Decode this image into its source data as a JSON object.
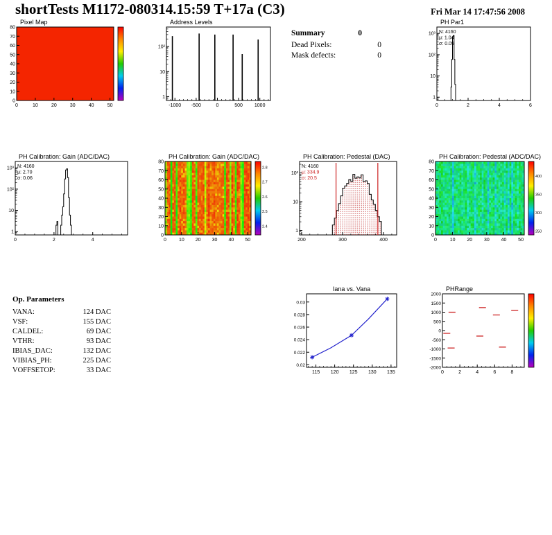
{
  "header": {
    "title": "shortTests M1172-080314.15:59 T+17a (C3)",
    "date": "Fri Mar 14 17:47:56 2008"
  },
  "summary": {
    "title": "Summary",
    "value": "0",
    "rows": [
      {
        "label": "Dead Pixels:",
        "value": "0"
      },
      {
        "label": "Mask defects:",
        "value": "0"
      }
    ]
  },
  "op_parameters": {
    "title": "Op. Parameters",
    "rows": [
      {
        "label": "VANA:",
        "value": "124 DAC"
      },
      {
        "label": "VSF:",
        "value": "155 DAC"
      },
      {
        "label": "CALDEL:",
        "value": "69 DAC"
      },
      {
        "label": "VTHR:",
        "value": "93 DAC"
      },
      {
        "label": "IBIAS_DAC:",
        "value": "132 DAC"
      },
      {
        "label": "VIBIAS_PH:",
        "value": "225 DAC"
      },
      {
        "label": "VOFFSETOP:",
        "value": "33 DAC"
      }
    ]
  },
  "chart_data": [
    {
      "key": "pixel_map",
      "type": "heatmap",
      "title": "Pixel Map",
      "uniform_color": "#f42500",
      "x": {
        "min": 0,
        "max": 52,
        "ticks": [
          0,
          10,
          20,
          30,
          40,
          50
        ]
      },
      "y": {
        "min": 0,
        "max": 80,
        "ticks": [
          0,
          10,
          20,
          30,
          40,
          50,
          60,
          70,
          80
        ]
      },
      "colorbar": {
        "ticks": []
      }
    },
    {
      "key": "address_levels",
      "type": "loghist",
      "title": "Address Levels",
      "x": {
        "min": -1200,
        "max": 1250,
        "ticks": [
          -1000,
          -500,
          0,
          500,
          1000
        ],
        "minor": 100
      },
      "y_log": {
        "min": 0.7,
        "max": 600,
        "decades": [
          [
            1,
            "1"
          ],
          [
            10,
            "10"
          ],
          [
            100,
            "10²"
          ]
        ]
      },
      "spikes": [
        [
          -1060,
          260
        ],
        [
          -430,
          330
        ],
        [
          -60,
          300
        ],
        [
          370,
          300
        ],
        [
          585,
          50
        ],
        [
          960,
          190
        ]
      ]
    },
    {
      "key": "ph_par1",
      "type": "loghist",
      "title": "PH Par1",
      "x": {
        "min": 0,
        "max": 6,
        "ticks": [
          0,
          2,
          4,
          6
        ],
        "minor": 0.5
      },
      "y_log": {
        "min": 0.7,
        "max": 2000,
        "decades": [
          [
            1,
            "1"
          ],
          [
            10,
            "10"
          ],
          [
            100,
            "10²"
          ],
          [
            1000,
            "10³"
          ]
        ]
      },
      "bins": {
        "start": 0.85,
        "width": 0.05,
        "values": [
          0,
          3,
          60,
          700,
          800,
          60,
          4,
          0
        ]
      },
      "stats": [
        [
          "N: 4160",
          "#000000"
        ],
        [
          "μ: 1.04",
          "#000000"
        ],
        [
          "σ: 0.05",
          "#000000"
        ]
      ]
    },
    {
      "key": "gain_hist",
      "type": "loghist",
      "title": "PH Calibration: Gain (ADC/DAC)",
      "x": {
        "min": 0,
        "max": 5.8,
        "ticks": [
          0,
          2,
          4
        ],
        "minor": 0.5
      },
      "y_log": {
        "min": 0.7,
        "max": 2000,
        "decades": [
          [
            1,
            "1"
          ],
          [
            10,
            "10"
          ],
          [
            100,
            "10²"
          ],
          [
            1000,
            "10³"
          ]
        ]
      },
      "bins": {
        "start": 2.05,
        "width": 0.05,
        "values": [
          0,
          2,
          3,
          0,
          0,
          0,
          2,
          6,
          15,
          60,
          300,
          800,
          900,
          350,
          40,
          6,
          2,
          0
        ]
      },
      "stats": [
        [
          "N: 4160",
          "#000000"
        ],
        [
          "μ: 2.70",
          "#000000"
        ],
        [
          "σ: 0.06",
          "#000000"
        ]
      ]
    },
    {
      "key": "gain_map",
      "type": "heatmap",
      "title": "PH Calibration: Gain (ADC/DAC)",
      "noise": "gain",
      "x": {
        "min": 0,
        "max": 52,
        "ticks": [
          0,
          10,
          20,
          30,
          40,
          50
        ]
      },
      "y": {
        "min": 0,
        "max": 80,
        "ticks": [
          0,
          10,
          20,
          30,
          40,
          50,
          60,
          70,
          80
        ]
      },
      "colorbar": {
        "ticks": [
          [
            "2.8",
            0.08
          ],
          [
            "2.7",
            0.28
          ],
          [
            "2.6",
            0.48
          ],
          [
            "2.5",
            0.68
          ],
          [
            "2.4",
            0.88
          ]
        ]
      }
    },
    {
      "key": "pedestal_hist",
      "type": "loghist",
      "title": "PH Calibration: Pedestal (DAC)",
      "x": {
        "min": 195,
        "max": 432,
        "ticks": [
          200,
          300,
          400
        ],
        "minor": 20
      },
      "y_log": {
        "min": 0.7,
        "max": 250,
        "decades": [
          [
            1,
            "1"
          ],
          [
            10,
            "10"
          ],
          [
            100,
            "10²"
          ]
        ]
      },
      "gauss": {
        "mu": 334.9,
        "sigma": 20.5,
        "peak": 85,
        "from": 255,
        "to": 420,
        "bin": 5
      },
      "fill_dots": true,
      "red_lines": [
        284,
        386
      ],
      "stats": [
        [
          "N: 4160",
          "#000000"
        ],
        [
          "μ: 334.9",
          "#cc2222"
        ],
        [
          "σ: 20.5",
          "#cc2222"
        ]
      ]
    },
    {
      "key": "pedestal_map",
      "type": "heatmap",
      "title": "PH Calibration: Pedestal (ADC/DAC)",
      "noise": "pedestal",
      "x": {
        "min": 0,
        "max": 52,
        "ticks": [
          0,
          10,
          20,
          30,
          40,
          50
        ]
      },
      "y": {
        "min": 0,
        "max": 80,
        "ticks": [
          0,
          10,
          20,
          30,
          40,
          50,
          60,
          70,
          80
        ]
      },
      "colorbar": {
        "ticks": [
          [
            "400",
            0.2
          ],
          [
            "350",
            0.45
          ],
          [
            "300",
            0.7
          ],
          [
            "250",
            0.95
          ]
        ]
      }
    },
    {
      "key": "iana",
      "type": "line",
      "title": "Iana vs. Vana",
      "title_align": "center",
      "color": "#2222cc",
      "x": {
        "min": 112.5,
        "max": 136.5,
        "ticks": [
          115,
          120,
          125,
          130,
          135
        ],
        "minor": 1
      },
      "y": {
        "min": 0.0196,
        "max": 0.0313,
        "ticks": [
          [
            0.02,
            "0.02"
          ],
          [
            0.022,
            "0.022"
          ],
          [
            0.024,
            "0.024"
          ],
          [
            0.026,
            "0.026"
          ],
          [
            0.028,
            "0.028"
          ],
          [
            0.03,
            "0.03"
          ]
        ]
      },
      "points": [
        [
          114,
          0.0212
        ],
        [
          119,
          0.0227
        ],
        [
          124.5,
          0.0247
        ],
        [
          129,
          0.0273
        ],
        [
          134,
          0.0305
        ]
      ],
      "markers": [
        [
          114,
          0.0212
        ],
        [
          124.5,
          0.0247
        ],
        [
          134,
          0.0305
        ]
      ]
    },
    {
      "key": "ph_range",
      "type": "segments",
      "title": "PHRange",
      "color": "#cc2222",
      "half_width": 0.4,
      "x": {
        "min": 0,
        "max": 9.4,
        "ticks": [
          0,
          2,
          4,
          6,
          8
        ],
        "minor": 0.5
      },
      "y": {
        "min": -2000,
        "max": 2000,
        "ticks": [
          [
            2000,
            "2000"
          ],
          [
            1500,
            "1500"
          ],
          [
            1000,
            "1000"
          ],
          [
            500,
            "500"
          ],
          [
            0,
            "0"
          ],
          [
            -500,
            "-500"
          ],
          [
            -1000,
            "-1000"
          ],
          [
            -1500,
            "-1500"
          ],
          [
            -2000,
            "-2000"
          ]
        ]
      },
      "segments": [
        [
          1.1,
          1000
        ],
        [
          4.6,
          1250
        ],
        [
          6.2,
          850
        ],
        [
          8.3,
          1100
        ],
        [
          0.5,
          -150
        ],
        [
          4.3,
          -300
        ],
        [
          1.0,
          -950
        ],
        [
          6.9,
          -900
        ]
      ],
      "colorbar": {
        "ticks": []
      }
    }
  ]
}
